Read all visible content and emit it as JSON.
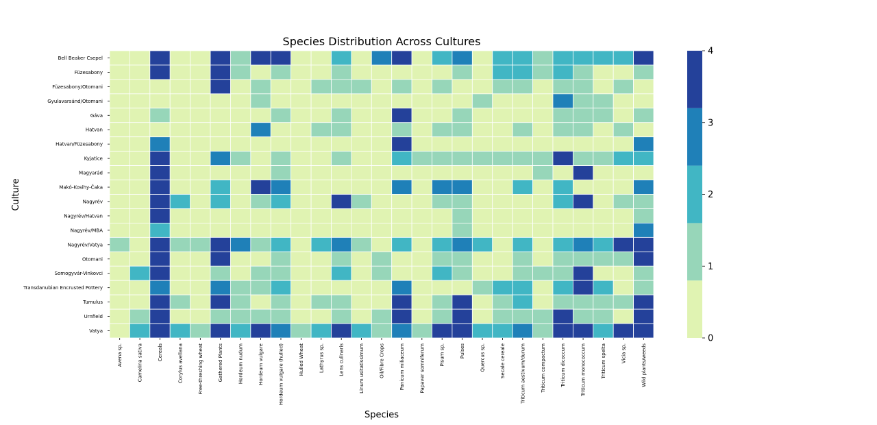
{
  "chart_data": {
    "type": "heatmap",
    "title": "Species Distribution Across Cultures",
    "xlabel": "Species",
    "ylabel": "Culture",
    "x": [
      "Avena sp.",
      "Camelina sativa",
      "Cereals",
      "Corylus avellana",
      "Free-threshing wheat",
      "Gathered Plants",
      "Hordeum nudum",
      "Hordeum vulgare",
      "Hordeum vulgare (hulled)",
      "Hulled Wheat",
      "Lathyrus sp.",
      "Lens culinaris",
      "Linum usitatissimum",
      "Oil/Fibre Crops",
      "Panicum miliaceum",
      "Papaver somniferum",
      "Pisum sp.",
      "Pulses",
      "Quercus sp.",
      "Secale cereale",
      "Triticum aestivum/durum",
      "Triticum compactum",
      "Triticum dicoccum",
      "Triticum monococcum",
      "Triticum spelta",
      "Vicia sp.",
      "Wild plants/weeds"
    ],
    "y": [
      "Bell Beaker Csepel",
      "Füzesabony",
      "Füzesabony/Otomani",
      "Gyulavarsánd/Otomani",
      "Gáva",
      "Hatvan",
      "Hatvan/Füzesabony",
      "Kyjatice",
      "Magyarád",
      "Makó-Kosihy-Čaka",
      "Nagyrév",
      "Nagyrév/Hatvan",
      "Nagyrév/MBA",
      "Nagyrév/Vatya",
      "Otomani",
      "Somogyvár-Vinkovci",
      "Transdanubian Encrusted Pottery",
      "Tumulus",
      "Urnfield",
      "Vatya"
    ],
    "values": [
      [
        0,
        0,
        4,
        0,
        0,
        4,
        1,
        4,
        4,
        0,
        0,
        2,
        0,
        3,
        4,
        0,
        2,
        3,
        0,
        2,
        2,
        1,
        2,
        2,
        2,
        2,
        4
      ],
      [
        0,
        0,
        4,
        0,
        0,
        4,
        1,
        0,
        1,
        0,
        0,
        1,
        0,
        0,
        0,
        0,
        0,
        1,
        0,
        2,
        2,
        1,
        2,
        1,
        0,
        0,
        1
      ],
      [
        0,
        0,
        0,
        0,
        0,
        4,
        0,
        1,
        0,
        0,
        1,
        1,
        1,
        0,
        1,
        0,
        1,
        0,
        0,
        1,
        1,
        0,
        1,
        1,
        0,
        1,
        0
      ],
      [
        0,
        0,
        0,
        0,
        0,
        0,
        0,
        1,
        0,
        0,
        0,
        0,
        0,
        0,
        0,
        0,
        0,
        0,
        1,
        0,
        0,
        0,
        3,
        1,
        1,
        0,
        0
      ],
      [
        0,
        0,
        1,
        0,
        0,
        0,
        0,
        0,
        1,
        0,
        0,
        1,
        0,
        0,
        4,
        0,
        0,
        1,
        0,
        0,
        0,
        0,
        1,
        1,
        1,
        0,
        1
      ],
      [
        0,
        0,
        0,
        0,
        0,
        0,
        0,
        3,
        0,
        0,
        1,
        1,
        0,
        0,
        1,
        0,
        1,
        1,
        0,
        0,
        1,
        0,
        1,
        1,
        0,
        1,
        0
      ],
      [
        0,
        0,
        3,
        0,
        0,
        0,
        0,
        0,
        0,
        0,
        0,
        0,
        0,
        0,
        4,
        0,
        0,
        0,
        0,
        0,
        0,
        0,
        0,
        0,
        0,
        0,
        3
      ],
      [
        0,
        0,
        4,
        0,
        0,
        3,
        1,
        0,
        1,
        0,
        0,
        1,
        0,
        0,
        2,
        1,
        1,
        1,
        1,
        1,
        1,
        1,
        4,
        1,
        1,
        2,
        2
      ],
      [
        0,
        0,
        4,
        0,
        0,
        0,
        0,
        0,
        1,
        0,
        0,
        0,
        0,
        0,
        0,
        0,
        0,
        0,
        0,
        0,
        0,
        1,
        0,
        4,
        0,
        0,
        0
      ],
      [
        0,
        0,
        4,
        0,
        0,
        2,
        0,
        4,
        3,
        0,
        0,
        0,
        0,
        0,
        3,
        0,
        3,
        3,
        0,
        0,
        2,
        0,
        2,
        0,
        0,
        0,
        3
      ],
      [
        0,
        0,
        4,
        2,
        0,
        2,
        0,
        1,
        2,
        0,
        0,
        4,
        1,
        0,
        0,
        0,
        1,
        1,
        0,
        0,
        0,
        0,
        2,
        4,
        0,
        1,
        1
      ],
      [
        0,
        0,
        4,
        0,
        0,
        0,
        0,
        0,
        0,
        0,
        0,
        0,
        0,
        0,
        0,
        0,
        0,
        1,
        0,
        0,
        0,
        0,
        0,
        0,
        0,
        0,
        1
      ],
      [
        0,
        0,
        2,
        0,
        0,
        0,
        0,
        0,
        0,
        0,
        0,
        0,
        0,
        0,
        0,
        0,
        0,
        1,
        0,
        0,
        0,
        0,
        0,
        0,
        0,
        0,
        3
      ],
      [
        1,
        0,
        4,
        1,
        1,
        4,
        3,
        1,
        2,
        0,
        2,
        3,
        1,
        0,
        2,
        0,
        2,
        3,
        2,
        0,
        2,
        0,
        2,
        3,
        2,
        4,
        4
      ],
      [
        0,
        0,
        4,
        0,
        0,
        4,
        0,
        0,
        1,
        0,
        0,
        1,
        0,
        1,
        0,
        0,
        1,
        1,
        0,
        0,
        1,
        0,
        1,
        1,
        1,
        1,
        4
      ],
      [
        0,
        2,
        4,
        0,
        0,
        1,
        0,
        1,
        1,
        0,
        0,
        2,
        0,
        1,
        0,
        0,
        2,
        1,
        0,
        0,
        1,
        1,
        1,
        4,
        0,
        0,
        1
      ],
      [
        0,
        0,
        3,
        0,
        0,
        3,
        1,
        1,
        2,
        0,
        0,
        0,
        0,
        0,
        3,
        0,
        0,
        0,
        1,
        2,
        2,
        0,
        2,
        4,
        2,
        0,
        1
      ],
      [
        0,
        0,
        4,
        1,
        0,
        4,
        1,
        0,
        1,
        0,
        1,
        1,
        0,
        0,
        4,
        0,
        1,
        4,
        0,
        1,
        2,
        0,
        1,
        1,
        1,
        1,
        4
      ],
      [
        0,
        1,
        4,
        0,
        0,
        1,
        1,
        1,
        1,
        0,
        0,
        1,
        0,
        1,
        4,
        0,
        1,
        4,
        0,
        1,
        1,
        1,
        4,
        1,
        1,
        0,
        4
      ],
      [
        0,
        2,
        4,
        2,
        1,
        4,
        2,
        4,
        3,
        1,
        2,
        4,
        2,
        1,
        3,
        1,
        4,
        4,
        2,
        2,
        3,
        1,
        4,
        4,
        2,
        4,
        4
      ]
    ],
    "colorbar": {
      "min": 0,
      "max": 4,
      "ticks": [
        "0",
        "1",
        "2",
        "3",
        "4"
      ]
    },
    "colors": [
      "#e0f3b2",
      "#97d6b9",
      "#41b6c4",
      "#1f80b8",
      "#24419a"
    ]
  }
}
